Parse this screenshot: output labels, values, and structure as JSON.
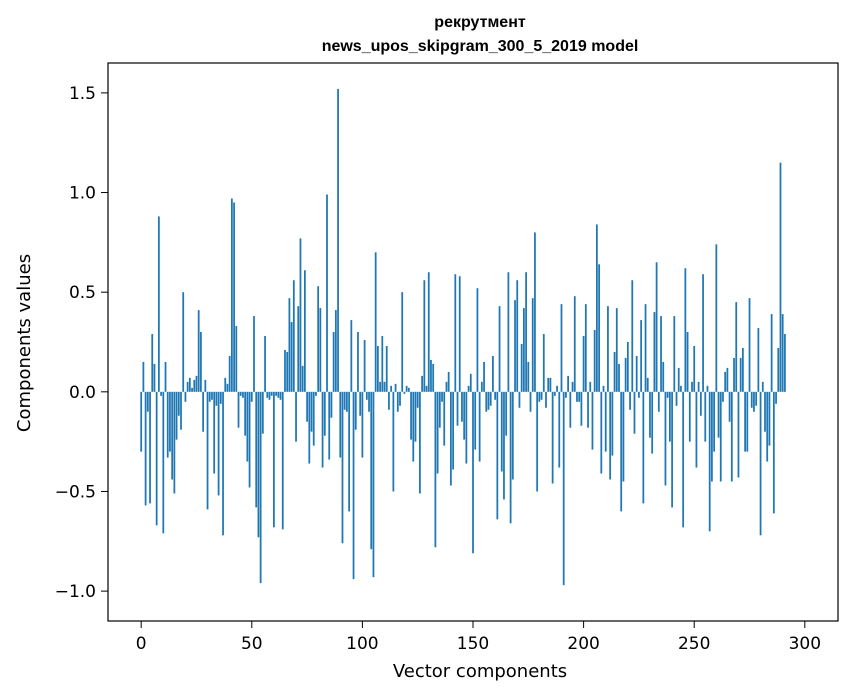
{
  "chart_data": {
    "type": "bar",
    "title": "рекрутмент",
    "subtitle": "news_upos_skipgram_300_5_2019 model",
    "xlabel": "Vector components",
    "ylabel": "Components values",
    "xlim": [
      -15,
      315
    ],
    "ylim": [
      -1.15,
      1.65
    ],
    "xticks": [
      0,
      50,
      100,
      150,
      200,
      250,
      300
    ],
    "yticks": [
      -1.0,
      -0.5,
      0.0,
      0.5,
      1.0,
      1.5
    ],
    "xtick_labels": [
      "0",
      "50",
      "100",
      "150",
      "200",
      "250",
      "300"
    ],
    "ytick_labels": [
      "−1.0",
      "−0.5",
      "0.0",
      "0.5",
      "1.0",
      "1.5"
    ],
    "bar_color": "#1f77b4",
    "grid": false,
    "series": [
      {
        "name": "components",
        "values": [
          -0.3,
          0.15,
          -0.57,
          -0.1,
          -0.56,
          0.29,
          0.14,
          -0.67,
          0.88,
          -0.02,
          -0.71,
          0.15,
          -0.33,
          -0.3,
          -0.44,
          -0.51,
          -0.24,
          -0.12,
          -0.19,
          0.5,
          -0.05,
          0.05,
          0.07,
          0.02,
          0.06,
          0.08,
          0.41,
          0.3,
          -0.2,
          0.06,
          -0.59,
          -0.05,
          -0.04,
          -0.41,
          -0.07,
          -0.52,
          -0.06,
          -0.72,
          0.07,
          0.04,
          0.18,
          0.97,
          0.95,
          0.33,
          -0.18,
          -0.02,
          -0.03,
          -0.22,
          -0.35,
          -0.48,
          -0.05,
          0.38,
          -0.58,
          -0.73,
          -0.96,
          -0.21,
          0.28,
          -0.03,
          -0.04,
          -0.02,
          -0.68,
          -0.02,
          -0.03,
          -0.04,
          -0.69,
          0.21,
          0.2,
          0.47,
          0.35,
          0.56,
          -0.25,
          0.43,
          0.77,
          0.13,
          0.61,
          -0.15,
          -0.36,
          -0.2,
          -0.27,
          -0.02,
          0.53,
          0.42,
          -0.38,
          -0.22,
          0.99,
          -0.34,
          -0.13,
          0.3,
          0.41,
          1.52,
          -0.33,
          -0.76,
          -0.09,
          -0.1,
          -0.6,
          0.36,
          -0.94,
          -0.19,
          0.3,
          -0.12,
          -0.33,
          0.26,
          -0.04,
          -0.1,
          -0.79,
          -0.93,
          0.7,
          0.23,
          0.05,
          0.28,
          0.05,
          0.23,
          -0.09,
          0.03,
          -0.5,
          0.04,
          -0.1,
          -0.07,
          0.5,
          -0.01,
          0.03,
          0.02,
          -0.24,
          -0.35,
          -0.25,
          -0.08,
          -0.51,
          0.08,
          0.56,
          0.03,
          0.6,
          0.16,
          0.14,
          -0.78,
          -0.41,
          -0.18,
          -0.05,
          -0.27,
          0.05,
          0.1,
          -0.47,
          -0.39,
          0.59,
          -0.17,
          0.58,
          -0.15,
          -0.24,
          -0.36,
          0.03,
          0.09,
          -0.81,
          -0.29,
          0.52,
          -0.35,
          0.05,
          0.15,
          -0.1,
          -0.09,
          -0.07,
          0.18,
          -0.04,
          -0.64,
          0.43,
          -0.4,
          -0.54,
          -0.22,
          0.6,
          -0.66,
          -0.44,
          0.46,
          0.56,
          -0.08,
          0.24,
          0.42,
          0.6,
          0.15,
          -0.1,
          0.47,
          0.8,
          -0.5,
          -0.05,
          -0.04,
          0.29,
          -0.08,
          0.07,
          0.07,
          -0.46,
          -0.02,
          0.03,
          -0.38,
          0.44,
          -0.97,
          -0.03,
          0.08,
          -0.18,
          0.05,
          0.48,
          -0.05,
          -0.05,
          -0.17,
          0.28,
          0.44,
          -0.18,
          0.05,
          -0.29,
          0.31,
          0.84,
          0.64,
          -0.41,
          0.03,
          -0.3,
          0.43,
          -0.44,
          -0.32,
          0.2,
          0.42,
          0.14,
          -0.6,
          -0.45,
          0.17,
          0.25,
          -0.09,
          0.56,
          -0.21,
          0.18,
          -0.03,
          0.36,
          -0.56,
          0.44,
          0.07,
          -0.23,
          -0.31,
          0.4,
          0.65,
          -0.1,
          0.38,
          0.15,
          -0.47,
          -0.03,
          -0.25,
          -0.58,
          0.38,
          -0.07,
          0.12,
          0.03,
          -0.68,
          0.62,
          0.3,
          -0.25,
          0.05,
          0.23,
          -0.38,
          0.05,
          -0.12,
          0.59,
          -0.25,
          0.03,
          -0.7,
          -0.45,
          -0.3,
          0.74,
          -0.23,
          -0.45,
          -0.05,
          0.1,
          0.12,
          -0.15,
          -0.45,
          0.17,
          0.45,
          -0.43,
          0.17,
          0.22,
          -0.3,
          -0.3,
          0.47,
          -0.08,
          -0.1,
          -0.07,
          0.32,
          -0.72,
          0.05,
          -0.2,
          -0.35,
          -0.27,
          0.39,
          -0.61,
          -0.06,
          0.22,
          1.15,
          0.39,
          0.29
        ]
      }
    ]
  }
}
